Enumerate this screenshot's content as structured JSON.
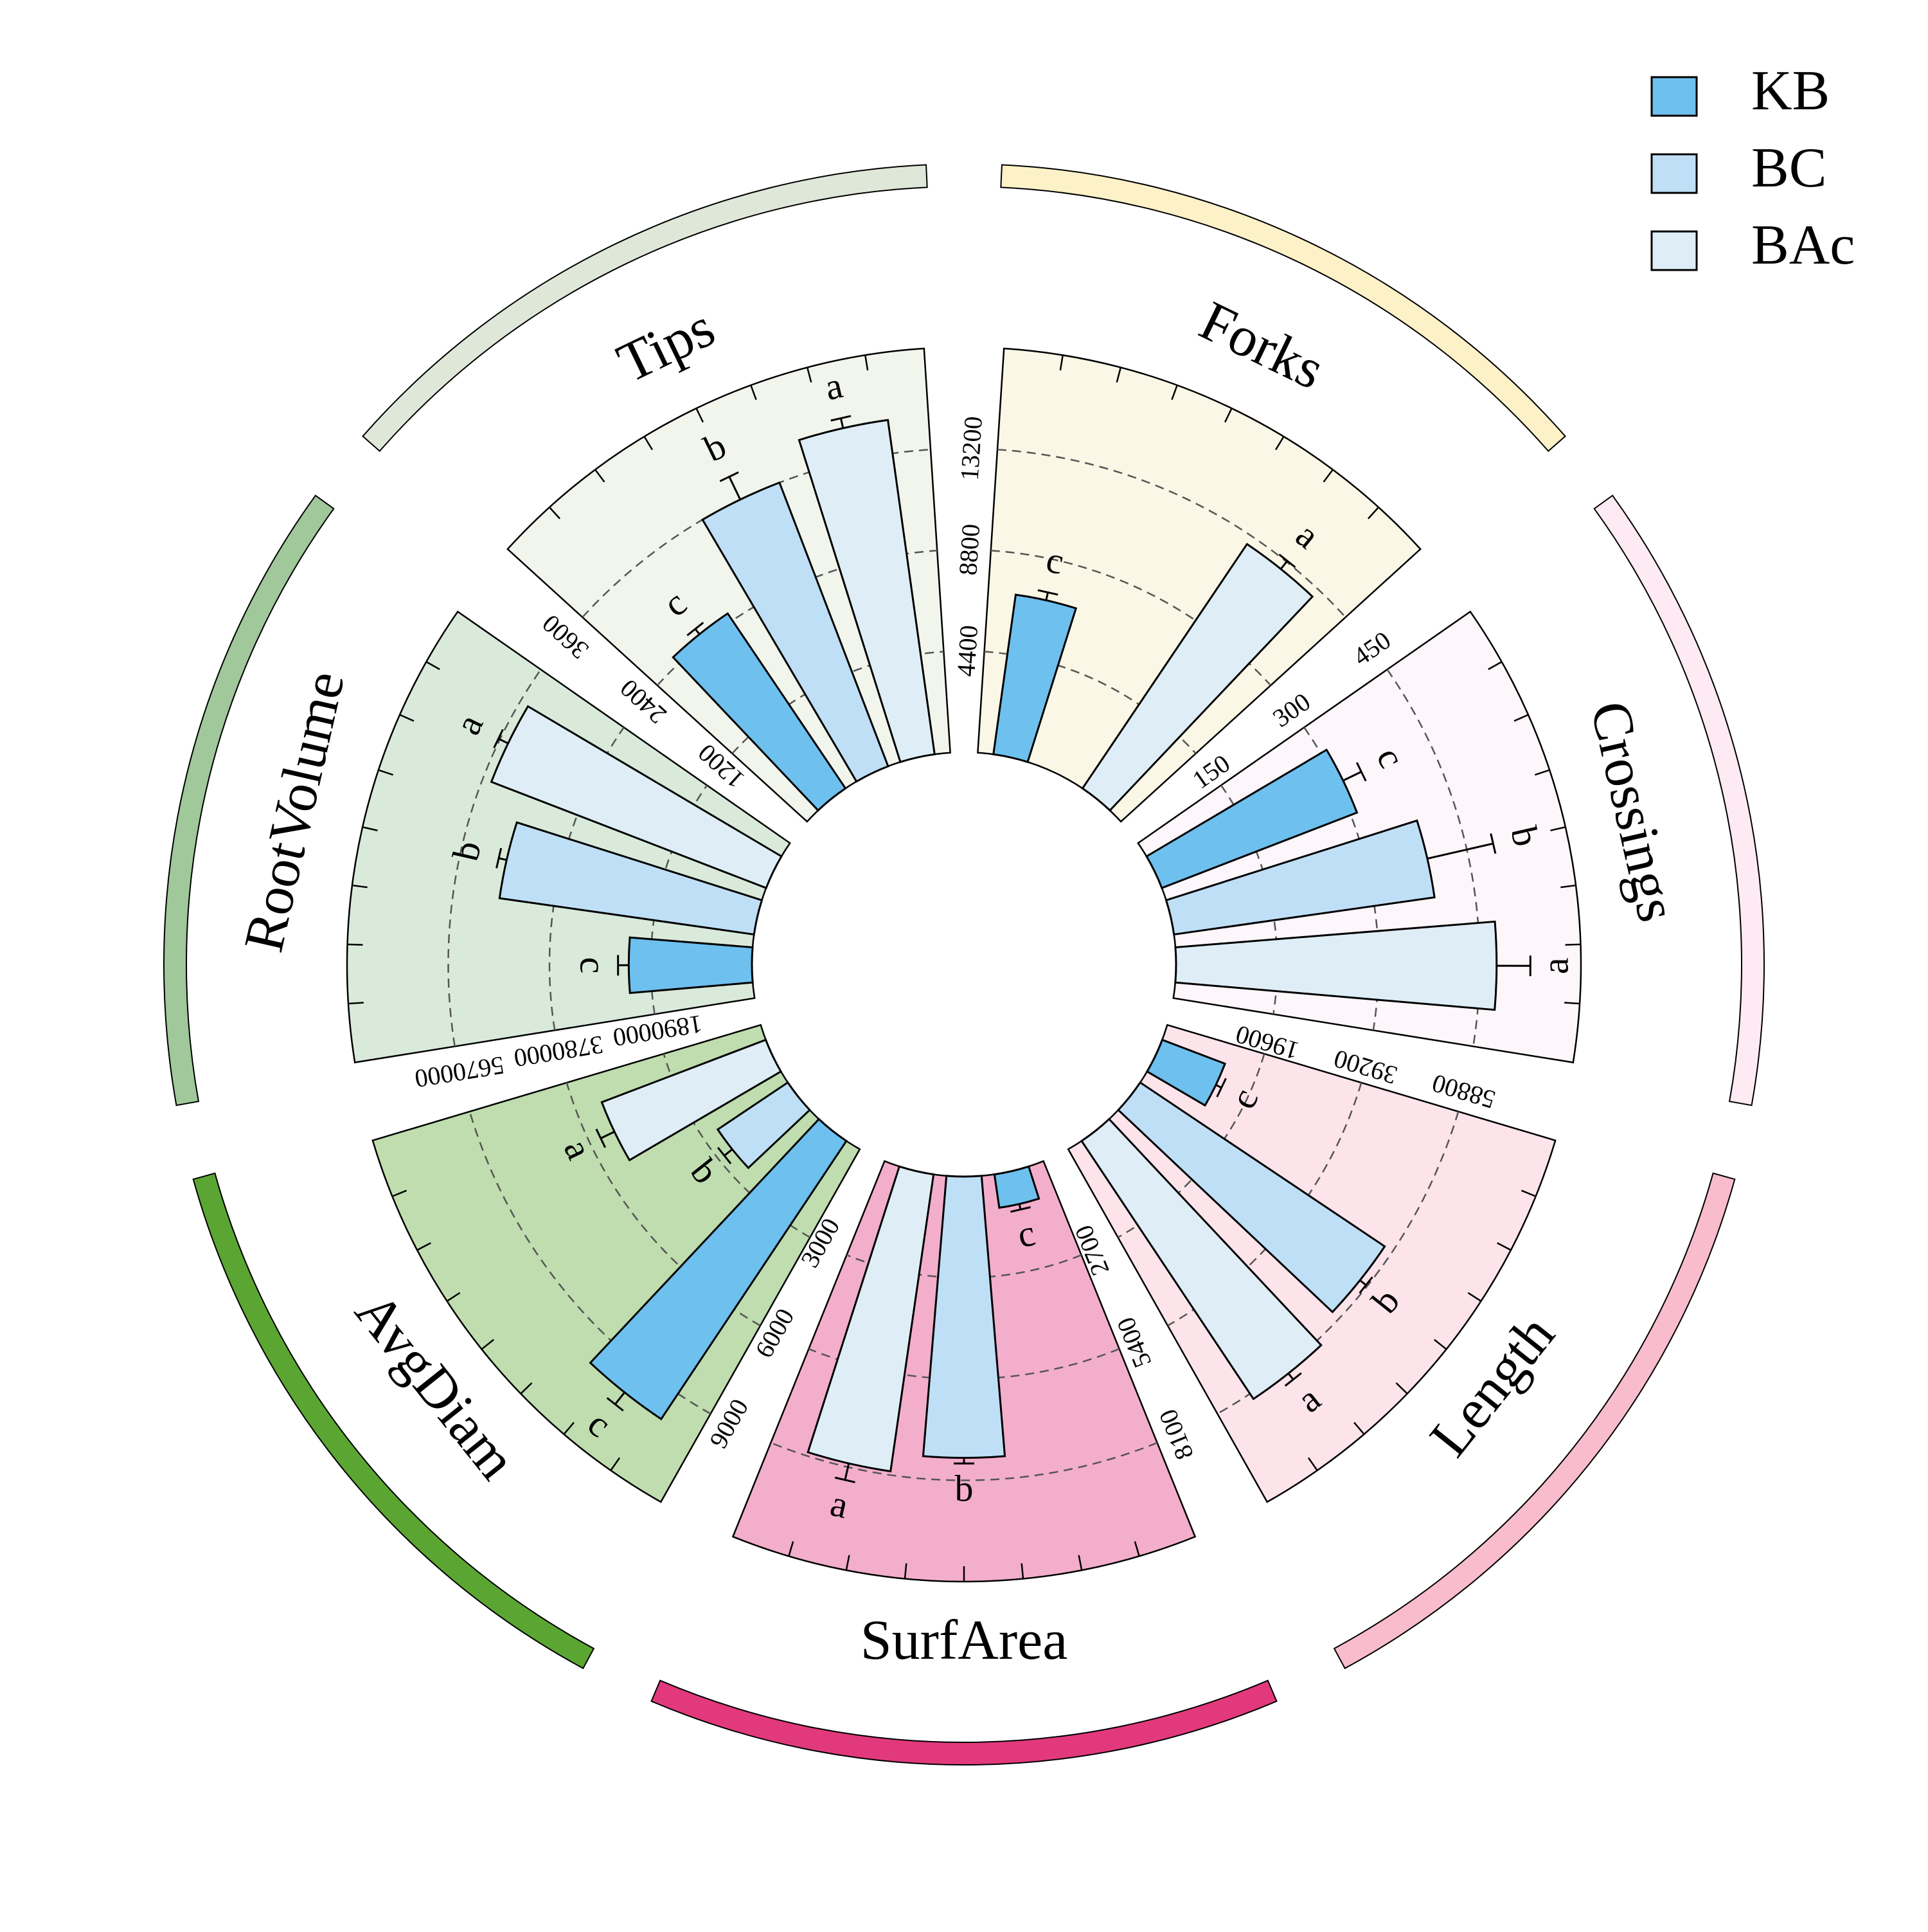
{
  "chart_data": {
    "type": "bar",
    "subtype": "circular-grouped-bar",
    "legend": {
      "position": "top-right",
      "entries": [
        {
          "name": "KB",
          "color": "#6ec0ee"
        },
        {
          "name": "BC",
          "color": "#bfdff6"
        },
        {
          "name": "BAc",
          "color": "#dfeef6"
        }
      ]
    },
    "sectors": [
      {
        "name": "Forks",
        "panel_color": "#fbf7e6",
        "band_color": "#fdf1c8",
        "ticks": [
          "4400",
          "8800",
          "13200"
        ],
        "max": 17600,
        "bars": [
          {
            "series": "KB",
            "value": 7000,
            "error": 350,
            "letter": "c"
          },
          {
            "series": "BAc",
            "value": 12800,
            "error": 450,
            "letter": "a"
          }
        ]
      },
      {
        "name": "Crossings",
        "panel_color": "#fdf6fa",
        "band_color": "#fdeaf3",
        "ticks": [
          "150",
          "300",
          "450"
        ],
        "max": 600,
        "bars": [
          {
            "series": "KB",
            "value": 310,
            "error": 30,
            "letter": "c"
          },
          {
            "series": "BC",
            "value": 390,
            "error": 100,
            "letter": "b"
          },
          {
            "series": "BAc",
            "value": 475,
            "error": 50,
            "letter": "a"
          }
        ]
      },
      {
        "name": "Length",
        "panel_color": "#fce4ea",
        "band_color": "#f8bccc",
        "ticks": [
          "19600",
          "39200",
          "58800"
        ],
        "max": 78400,
        "bars": [
          {
            "series": "KB",
            "value": 13000,
            "error": 1200,
            "letter": "c"
          },
          {
            "series": "BC",
            "value": 57000,
            "error": 1500,
            "letter": "b"
          },
          {
            "series": "BAc",
            "value": 60000,
            "error": 1500,
            "letter": "a"
          }
        ]
      },
      {
        "name": "SurfArea",
        "panel_color": "#f3aecb",
        "band_color": "#e2397d",
        "ticks": [
          "2700",
          "5400",
          "8100"
        ],
        "max": 10800,
        "bars": [
          {
            "series": "KB",
            "value": 900,
            "error": 150,
            "letter": "c"
          },
          {
            "series": "BC",
            "value": 7500,
            "error": 150,
            "letter": "b"
          },
          {
            "series": "BAc",
            "value": 8000,
            "error": 450,
            "letter": "a"
          }
        ]
      },
      {
        "name": "AvgDiam",
        "panel_color": "#bfddae",
        "band_color": "#5ba632",
        "ticks": [
          "3000",
          "6000",
          "9000"
        ],
        "max": 12000,
        "bars": [
          {
            "series": "KB",
            "value": 9900,
            "error": 450,
            "letter": "c"
          },
          {
            "series": "BC",
            "value": 2500,
            "error": 300,
            "letter": "b"
          },
          {
            "series": "BAc",
            "value": 5200,
            "error": 450,
            "letter": "a"
          }
        ]
      },
      {
        "name": "RootVolume",
        "panel_color": "#d9eadb",
        "band_color": "#a0c89b",
        "ticks": [
          "1890000",
          "3780000",
          "5670000"
        ],
        "max": 7560000,
        "bars": [
          {
            "series": "KB",
            "value": 2300000,
            "error": 200000,
            "letter": "c"
          },
          {
            "series": "BC",
            "value": 4800000,
            "error": 150000,
            "letter": "b"
          },
          {
            "series": "BAc",
            "value": 5500000,
            "error": 200000,
            "letter": "a"
          }
        ]
      },
      {
        "name": "Tips",
        "panel_color": "#f1f5ec",
        "band_color": "#dfe8d8",
        "ticks": [
          "1200",
          "2400",
          "3600"
        ],
        "max": 4800,
        "bars": [
          {
            "series": "KB",
            "value": 2500,
            "error": 80,
            "letter": "c"
          },
          {
            "series": "BC",
            "value": 3600,
            "error": 300,
            "letter": "b"
          },
          {
            "series": "BAc",
            "value": 4000,
            "error": 120,
            "letter": "a"
          }
        ]
      }
    ]
  }
}
